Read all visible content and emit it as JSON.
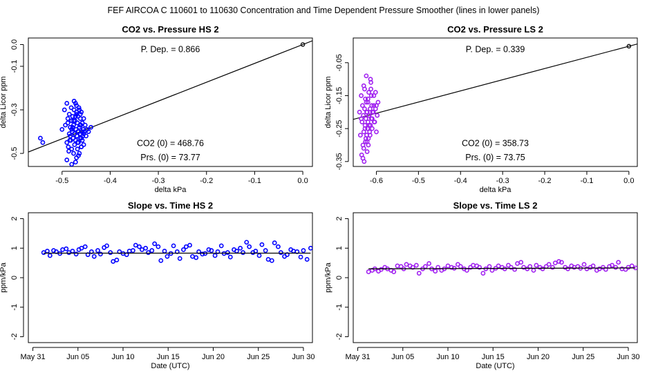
{
  "suptitle": "FEF   AIRCOA C   110601 to 110630   Concentration and Time Dependent Pressure Smoother (lines in lower panels)",
  "colors": {
    "hs": "#0000ff",
    "ls": "#a020f0",
    "line": "#000000"
  },
  "chart_data": [
    {
      "id": "hs-pressure",
      "type": "scatter",
      "title": "CO2 vs. Pressure HS 2",
      "xlabel": "delta kPa",
      "ylabel": "delta Licor ppm",
      "xlim": [
        -0.57,
        0.02
      ],
      "ylim": [
        -0.56,
        0.03
      ],
      "xticks": [
        -0.5,
        -0.4,
        -0.3,
        -0.2,
        -0.1,
        0.0
      ],
      "xtick_labels": [
        "-0.5",
        "-0.4",
        "-0.3",
        "-0.2",
        "-0.1",
        "0.0"
      ],
      "yticks": [
        -0.5,
        -0.3,
        -0.1,
        0.0
      ],
      "ytick_labels": [
        "-0.5",
        "-0.3",
        "-0.1",
        "0.0"
      ],
      "annotations": [
        {
          "label": "P. Dep. =",
          "value": "0.866"
        },
        {
          "label": "CO2 (0) =",
          "value": "468.76"
        },
        {
          "label": "Prs. (0) =",
          "value": "73.77"
        }
      ],
      "fit_line": {
        "slope": 0.866,
        "intercept": 0.0
      },
      "origin_point": [
        0.0,
        0.0
      ],
      "series": [
        {
          "x": [
            -0.545,
            -0.54,
            -0.5,
            -0.495,
            -0.493,
            -0.49,
            -0.49,
            -0.488,
            -0.487,
            -0.485,
            -0.485,
            -0.483,
            -0.482,
            -0.481,
            -0.48,
            -0.48,
            -0.479,
            -0.478,
            -0.477,
            -0.476,
            -0.476,
            -0.475,
            -0.474,
            -0.474,
            -0.473,
            -0.472,
            -0.472,
            -0.471,
            -0.47,
            -0.47,
            -0.469,
            -0.468,
            -0.468,
            -0.467,
            -0.466,
            -0.466,
            -0.465,
            -0.464,
            -0.464,
            -0.463,
            -0.462,
            -0.462,
            -0.461,
            -0.46,
            -0.46,
            -0.459,
            -0.458,
            -0.458,
            -0.457,
            -0.456,
            -0.455,
            -0.455,
            -0.454,
            -0.452,
            -0.45,
            -0.448,
            -0.445,
            -0.44,
            -0.49,
            -0.486,
            -0.48,
            -0.475,
            -0.47,
            -0.466,
            -0.462,
            -0.46,
            -0.458,
            -0.483,
            -0.478,
            -0.472,
            -0.468,
            -0.464,
            -0.46,
            -0.455,
            -0.488,
            -0.484,
            -0.48,
            -0.476,
            -0.472,
            -0.47,
            -0.467,
            -0.463
          ],
          "y": [
            -0.43,
            -0.45,
            -0.39,
            -0.3,
            -0.37,
            -0.45,
            -0.27,
            -0.34,
            -0.47,
            -0.41,
            -0.32,
            -0.38,
            -0.44,
            -0.29,
            -0.35,
            -0.48,
            -0.4,
            -0.33,
            -0.43,
            -0.37,
            -0.5,
            -0.3,
            -0.41,
            -0.46,
            -0.35,
            -0.27,
            -0.44,
            -0.39,
            -0.31,
            -0.52,
            -0.42,
            -0.36,
            -0.48,
            -0.33,
            -0.4,
            -0.45,
            -0.29,
            -0.38,
            -0.5,
            -0.43,
            -0.34,
            -0.41,
            -0.37,
            -0.47,
            -0.31,
            -0.4,
            -0.44,
            -0.36,
            -0.42,
            -0.39,
            -0.34,
            -0.46,
            -0.4,
            -0.37,
            -0.42,
            -0.39,
            -0.4,
            -0.38,
            -0.53,
            -0.49,
            -0.55,
            -0.26,
            -0.28,
            -0.51,
            -0.32,
            -0.43,
            -0.36,
            -0.42,
            -0.38,
            -0.33,
            -0.45,
            -0.3,
            -0.47,
            -0.41,
            -0.36,
            -0.44,
            -0.39,
            -0.35,
            -0.54,
            -0.32,
            -0.4,
            -0.37
          ]
        }
      ]
    },
    {
      "id": "ls-pressure",
      "type": "scatter",
      "title": "CO2 vs. Pressure LS 2",
      "xlabel": "delta kPa",
      "ylabel": "delta Licor ppm",
      "xlim": [
        -0.655,
        0.02
      ],
      "ylim": [
        -0.365,
        0.025
      ],
      "xticks": [
        -0.6,
        -0.5,
        -0.4,
        -0.3,
        -0.2,
        -0.1,
        0.0
      ],
      "xtick_labels": [
        "-0.6",
        "-0.5",
        "-0.4",
        "-0.3",
        "-0.2",
        "-0.1",
        "0.0"
      ],
      "yticks": [
        -0.35,
        -0.25,
        -0.15,
        -0.05
      ],
      "ytick_labels": [
        "-0.35",
        "-0.25",
        "-0.15",
        "-0.05"
      ],
      "annotations": [
        {
          "label": "P. Dep. =",
          "value": "0.339"
        },
        {
          "label": "CO2 (0) =",
          "value": "358.73"
        },
        {
          "label": "Prs. (0) =",
          "value": "73.75"
        }
      ],
      "fit_line": {
        "slope": 0.339,
        "intercept": 0.0
      },
      "origin_point": [
        0.0,
        0.0
      ],
      "series": [
        {
          "x": [
            -0.64,
            -0.638,
            -0.636,
            -0.635,
            -0.634,
            -0.633,
            -0.632,
            -0.631,
            -0.63,
            -0.63,
            -0.629,
            -0.628,
            -0.627,
            -0.626,
            -0.626,
            -0.625,
            -0.624,
            -0.623,
            -0.622,
            -0.622,
            -0.621,
            -0.62,
            -0.62,
            -0.619,
            -0.618,
            -0.617,
            -0.616,
            -0.615,
            -0.614,
            -0.613,
            -0.612,
            -0.611,
            -0.61,
            -0.608,
            -0.606,
            -0.604,
            -0.602,
            -0.6,
            -0.598,
            -0.596,
            -0.63,
            -0.628,
            -0.625,
            -0.623,
            -0.62,
            -0.617,
            -0.614,
            -0.61,
            -0.606,
            -0.602,
            -0.632,
            -0.627,
            -0.622,
            -0.618,
            -0.615,
            -0.612,
            -0.609,
            -0.605,
            -0.6,
            -0.636,
            -0.624,
            -0.619,
            -0.613,
            -0.607
          ],
          "y": [
            -0.2,
            -0.27,
            -0.15,
            -0.33,
            -0.23,
            -0.18,
            -0.3,
            -0.21,
            -0.26,
            -0.12,
            -0.35,
            -0.19,
            -0.24,
            -0.16,
            -0.29,
            -0.22,
            -0.09,
            -0.27,
            -0.2,
            -0.32,
            -0.25,
            -0.17,
            -0.23,
            -0.28,
            -0.14,
            -0.21,
            -0.26,
            -0.19,
            -0.24,
            -0.11,
            -0.22,
            -0.18,
            -0.25,
            -0.2,
            -0.15,
            -0.23,
            -0.19,
            -0.26,
            -0.21,
            -0.17,
            -0.31,
            -0.13,
            -0.28,
            -0.2,
            -0.16,
            -0.24,
            -0.1,
            -0.22,
            -0.18,
            -0.14,
            -0.34,
            -0.25,
            -0.29,
            -0.21,
            -0.27,
            -0.15,
            -0.2,
            -0.23,
            -0.18,
            -0.22,
            -0.17,
            -0.3,
            -0.13,
            -0.2
          ]
        }
      ]
    },
    {
      "id": "hs-time",
      "type": "scatter",
      "title": "Slope vs. Time HS 2",
      "xlabel": "Date (UTC)",
      "ylabel": "ppm/kPa",
      "xlim": [
        -0.5,
        31
      ],
      "ylim": [
        -2.2,
        2.2
      ],
      "xticks": [
        0,
        5,
        10,
        15,
        20,
        25,
        30
      ],
      "xtick_labels": [
        "May 31",
        "Jun 05",
        "Jun 10",
        "Jun 15",
        "Jun 20",
        "Jun 25",
        "Jun 30"
      ],
      "yticks": [
        -2,
        -1,
        0,
        1,
        2
      ],
      "ytick_labels": [
        "-2",
        "-1",
        "0",
        "1",
        "2"
      ],
      "smoother": {
        "x": [
          1.2,
          30.8
        ],
        "y": [
          0.83,
          0.83
        ]
      },
      "series": [
        {
          "x": [
            1.2,
            1.6,
            1.9,
            2.3,
            2.6,
            3.0,
            3.3,
            3.7,
            4.0,
            4.4,
            4.8,
            5.1,
            5.4,
            5.8,
            6.1,
            6.5,
            6.8,
            7.2,
            7.5,
            7.9,
            8.2,
            8.6,
            8.9,
            9.3,
            9.6,
            10.0,
            10.4,
            10.7,
            11.1,
            11.4,
            11.8,
            12.1,
            12.5,
            12.8,
            13.2,
            13.5,
            13.9,
            14.2,
            14.6,
            14.9,
            15.3,
            15.6,
            16.0,
            16.3,
            16.7,
            17.0,
            17.4,
            17.7,
            18.1,
            18.4,
            18.8,
            19.1,
            19.5,
            19.8,
            20.2,
            20.5,
            20.9,
            21.2,
            21.6,
            21.9,
            22.3,
            22.6,
            23.0,
            23.3,
            23.7,
            24.0,
            24.4,
            24.7,
            25.1,
            25.4,
            25.8,
            26.1,
            26.5,
            26.8,
            27.2,
            27.5,
            27.9,
            28.2,
            28.6,
            28.9,
            29.3,
            29.7,
            30.0,
            30.4,
            30.8
          ],
          "y": [
            0.85,
            0.9,
            0.75,
            0.92,
            0.88,
            0.82,
            0.95,
            0.98,
            0.85,
            0.9,
            0.8,
            0.95,
            1.0,
            1.05,
            0.78,
            0.88,
            0.72,
            0.92,
            0.8,
            1.02,
            1.08,
            0.85,
            0.55,
            0.6,
            0.88,
            0.82,
            0.78,
            0.9,
            0.92,
            1.1,
            1.05,
            0.95,
            1.0,
            0.85,
            0.92,
            1.15,
            1.05,
            0.58,
            0.9,
            0.72,
            0.82,
            1.08,
            0.88,
            0.65,
            0.95,
            1.05,
            1.1,
            0.72,
            0.68,
            0.88,
            0.8,
            0.82,
            0.95,
            0.92,
            0.75,
            0.88,
            1.08,
            0.82,
            0.85,
            0.7,
            0.95,
            0.9,
            1.0,
            0.85,
            1.2,
            1.05,
            0.85,
            0.9,
            0.75,
            1.12,
            0.92,
            0.62,
            0.58,
            1.18,
            1.05,
            0.85,
            0.72,
            0.78,
            0.95,
            0.9,
            0.88,
            0.7,
            0.92,
            0.62,
            1.0
          ]
        }
      ]
    },
    {
      "id": "ls-time",
      "type": "scatter",
      "title": "Slope vs. Time LS 2",
      "xlabel": "Date (UTC)",
      "ylabel": "ppm/kPa",
      "xlim": [
        -0.5,
        31
      ],
      "ylim": [
        -2.2,
        2.2
      ],
      "xticks": [
        0,
        5,
        10,
        15,
        20,
        25,
        30
      ],
      "xtick_labels": [
        "May 31",
        "Jun 05",
        "Jun 10",
        "Jun 15",
        "Jun 20",
        "Jun 25",
        "Jun 30"
      ],
      "yticks": [
        -2,
        -1,
        0,
        1,
        2
      ],
      "ytick_labels": [
        "-2",
        "-1",
        "0",
        "1",
        "2"
      ],
      "smoother": {
        "x": [
          1.2,
          30.8
        ],
        "y": [
          0.3,
          0.33
        ]
      },
      "series": [
        {
          "x": [
            1.2,
            1.6,
            1.9,
            2.3,
            2.6,
            3.0,
            3.3,
            3.7,
            4.0,
            4.4,
            4.8,
            5.1,
            5.4,
            5.8,
            6.1,
            6.5,
            6.8,
            7.2,
            7.5,
            7.9,
            8.2,
            8.6,
            8.9,
            9.3,
            9.6,
            10.0,
            10.4,
            10.7,
            11.1,
            11.4,
            11.8,
            12.1,
            12.5,
            12.8,
            13.2,
            13.5,
            13.9,
            14.2,
            14.6,
            14.9,
            15.3,
            15.6,
            16.0,
            16.3,
            16.7,
            17.0,
            17.4,
            17.7,
            18.1,
            18.4,
            18.8,
            19.1,
            19.5,
            19.8,
            20.2,
            20.5,
            20.9,
            21.2,
            21.6,
            21.9,
            22.3,
            22.6,
            23.0,
            23.3,
            23.7,
            24.0,
            24.4,
            24.7,
            25.1,
            25.4,
            25.8,
            26.1,
            26.5,
            26.8,
            27.2,
            27.5,
            27.9,
            28.2,
            28.6,
            28.9,
            29.3,
            29.7,
            30.0,
            30.4,
            30.8
          ],
          "y": [
            0.2,
            0.25,
            0.3,
            0.22,
            0.28,
            0.35,
            0.3,
            0.25,
            0.2,
            0.4,
            0.38,
            0.3,
            0.45,
            0.4,
            0.35,
            0.42,
            0.15,
            0.3,
            0.38,
            0.48,
            0.3,
            0.22,
            0.35,
            0.25,
            0.3,
            0.4,
            0.35,
            0.32,
            0.45,
            0.38,
            0.3,
            0.25,
            0.35,
            0.42,
            0.4,
            0.35,
            0.15,
            0.3,
            0.38,
            0.25,
            0.32,
            0.4,
            0.35,
            0.3,
            0.42,
            0.35,
            0.28,
            0.48,
            0.52,
            0.35,
            0.3,
            0.38,
            0.25,
            0.42,
            0.35,
            0.3,
            0.38,
            0.45,
            0.35,
            0.5,
            0.55,
            0.52,
            0.35,
            0.3,
            0.4,
            0.35,
            0.38,
            0.32,
            0.45,
            0.3,
            0.35,
            0.4,
            0.25,
            0.3,
            0.35,
            0.28,
            0.38,
            0.42,
            0.35,
            0.52,
            0.3,
            0.28,
            0.35,
            0.4,
            0.33
          ]
        }
      ]
    }
  ]
}
